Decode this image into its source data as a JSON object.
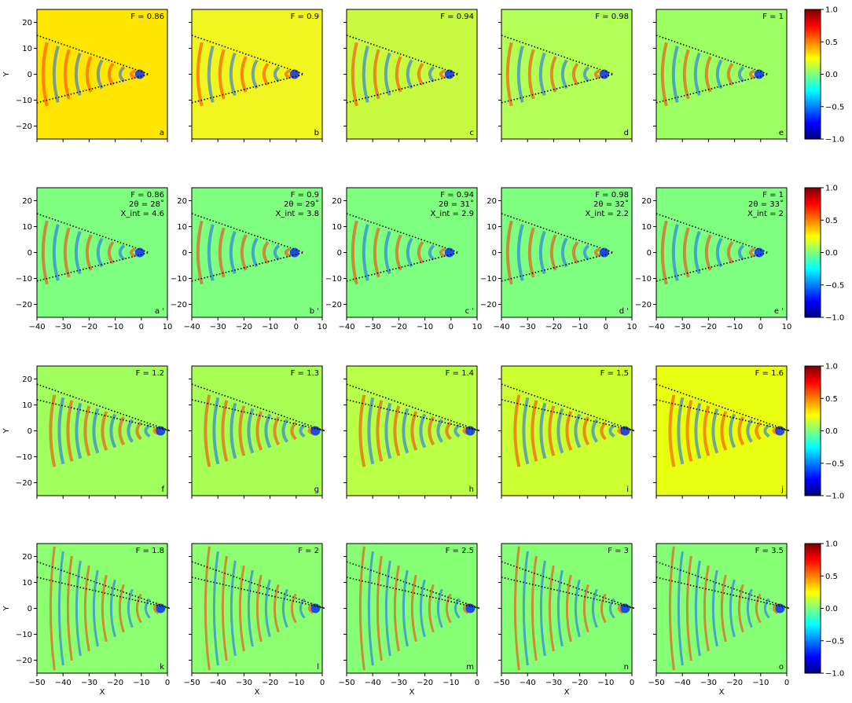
{
  "figure": {
    "colormap": "jet",
    "colormap_stops": [
      "#00007f",
      "#0000ff",
      "#007fff",
      "#00ffff",
      "#7fff7f",
      "#ffff00",
      "#ff7f00",
      "#ff0000",
      "#7f0000"
    ]
  },
  "chart_data": [
    {
      "type": "heatmap",
      "rows": [
        {
          "row_id": "row1",
          "x_range": [
            -40,
            10
          ],
          "y_range": [
            -25,
            25
          ],
          "xticks": [
            -40,
            -30,
            -20,
            -10,
            0,
            10
          ],
          "yticks": [
            -20,
            -10,
            0,
            10,
            20
          ],
          "xlabel": "",
          "ylabel": "Y",
          "show_x_tick_labels": false,
          "colorbar": {
            "range": [
              -1,
              1
            ],
            "ticks": [
              "1.0",
              "0.5",
              "0.0",
              "-0.5",
              "-1.0"
            ]
          },
          "panels": [
            {
              "tag": "a",
              "label": "F = 0.86",
              "lines": [],
              "background": "#ffe600"
            },
            {
              "tag": "b",
              "label": "F = 0.9",
              "lines": [],
              "background": "#f0f520"
            },
            {
              "tag": "c",
              "label": "F = 0.94",
              "lines": [],
              "background": "#c8fa40"
            },
            {
              "tag": "d",
              "label": "F = 0.98",
              "lines": [],
              "background": "#b2ff55"
            },
            {
              "tag": "e",
              "label": "F = 1",
              "lines": [],
              "background": "#9cff62"
            }
          ]
        },
        {
          "row_id": "row2",
          "x_range": [
            -40,
            10
          ],
          "y_range": [
            -25,
            25
          ],
          "xticks": [
            -40,
            -30,
            -20,
            -10,
            0,
            10
          ],
          "yticks": [
            -20,
            -10,
            0,
            10,
            20
          ],
          "xlabel": "",
          "ylabel": "",
          "show_x_tick_labels": true,
          "colorbar": {
            "range": [
              -1,
              1
            ],
            "ticks": [
              "1.0",
              "0.5",
              "0.0",
              "-0.5",
              "-1.0"
            ]
          },
          "panels": [
            {
              "tag": "a '",
              "label": "F = 0.86",
              "lines": [
                "2θ = 28˚",
                "X_int = 4.6"
              ],
              "background": "#7fff7f"
            },
            {
              "tag": "b '",
              "label": "F = 0.9",
              "lines": [
                "2θ = 29˚",
                "X_int = 3.8"
              ],
              "background": "#7fff7f"
            },
            {
              "tag": "c '",
              "label": "F = 0.94",
              "lines": [
                "2θ = 31˚",
                "X_int = 2.9"
              ],
              "background": "#7fff7f"
            },
            {
              "tag": "d '",
              "label": "F = 0.98",
              "lines": [
                "2θ = 32˚",
                "X_int = 2.2"
              ],
              "background": "#7fff7f"
            },
            {
              "tag": "e '",
              "label": "F = 1",
              "lines": [
                "2θ = 33˚",
                "X_int = 2"
              ],
              "background": "#7fff7f"
            }
          ]
        },
        {
          "row_id": "row3",
          "x_range": [
            -50,
            0
          ],
          "y_range": [
            -25,
            25
          ],
          "xticks": [
            -50,
            -40,
            -30,
            -20,
            -10,
            0
          ],
          "yticks": [
            -20,
            -10,
            0,
            10,
            20
          ],
          "xlabel": "",
          "ylabel": "Y",
          "show_x_tick_labels": false,
          "colorbar": {
            "range": [
              -1,
              1
            ],
            "ticks": [
              "1.0",
              "0.5",
              "0.0",
              "-0.5",
              "-1.0"
            ]
          },
          "panels": [
            {
              "tag": "f",
              "label": "F = 1.2",
              "lines": [],
              "background": "#a0ff5c"
            },
            {
              "tag": "g",
              "label": "F = 1.3",
              "lines": [],
              "background": "#a8ff54"
            },
            {
              "tag": "h",
              "label": "F = 1.4",
              "lines": [],
              "background": "#b8ff46"
            },
            {
              "tag": "i",
              "label": "F = 1.5",
              "lines": [],
              "background": "#ccff30"
            },
            {
              "tag": "j",
              "label": "F = 1.6",
              "lines": [],
              "background": "#e8ff10"
            }
          ]
        },
        {
          "row_id": "row4",
          "x_range": [
            -50,
            0
          ],
          "y_range": [
            -25,
            25
          ],
          "xticks": [
            -50,
            -40,
            -30,
            -20,
            -10,
            0
          ],
          "yticks": [
            -20,
            -10,
            0,
            10,
            20
          ],
          "xlabel": "X",
          "ylabel": "Y",
          "show_x_tick_labels": true,
          "colorbar": {
            "range": [
              -1,
              1
            ],
            "ticks": [
              "1.0",
              "0.5",
              "0.0",
              "-0.5",
              "-1.0"
            ]
          },
          "panels": [
            {
              "tag": "k",
              "label": "F = 1.8",
              "lines": [],
              "background": "#8cff70"
            },
            {
              "tag": "l",
              "label": "F = 2",
              "lines": [],
              "background": "#8cff70"
            },
            {
              "tag": "m",
              "label": "F = 2.5",
              "lines": [],
              "background": "#86ff76"
            },
            {
              "tag": "n",
              "label": "F = 3",
              "lines": [],
              "background": "#86ff76"
            },
            {
              "tag": "o",
              "label": "F = 3.5",
              "lines": [],
              "background": "#86ff76"
            }
          ]
        }
      ]
    }
  ]
}
